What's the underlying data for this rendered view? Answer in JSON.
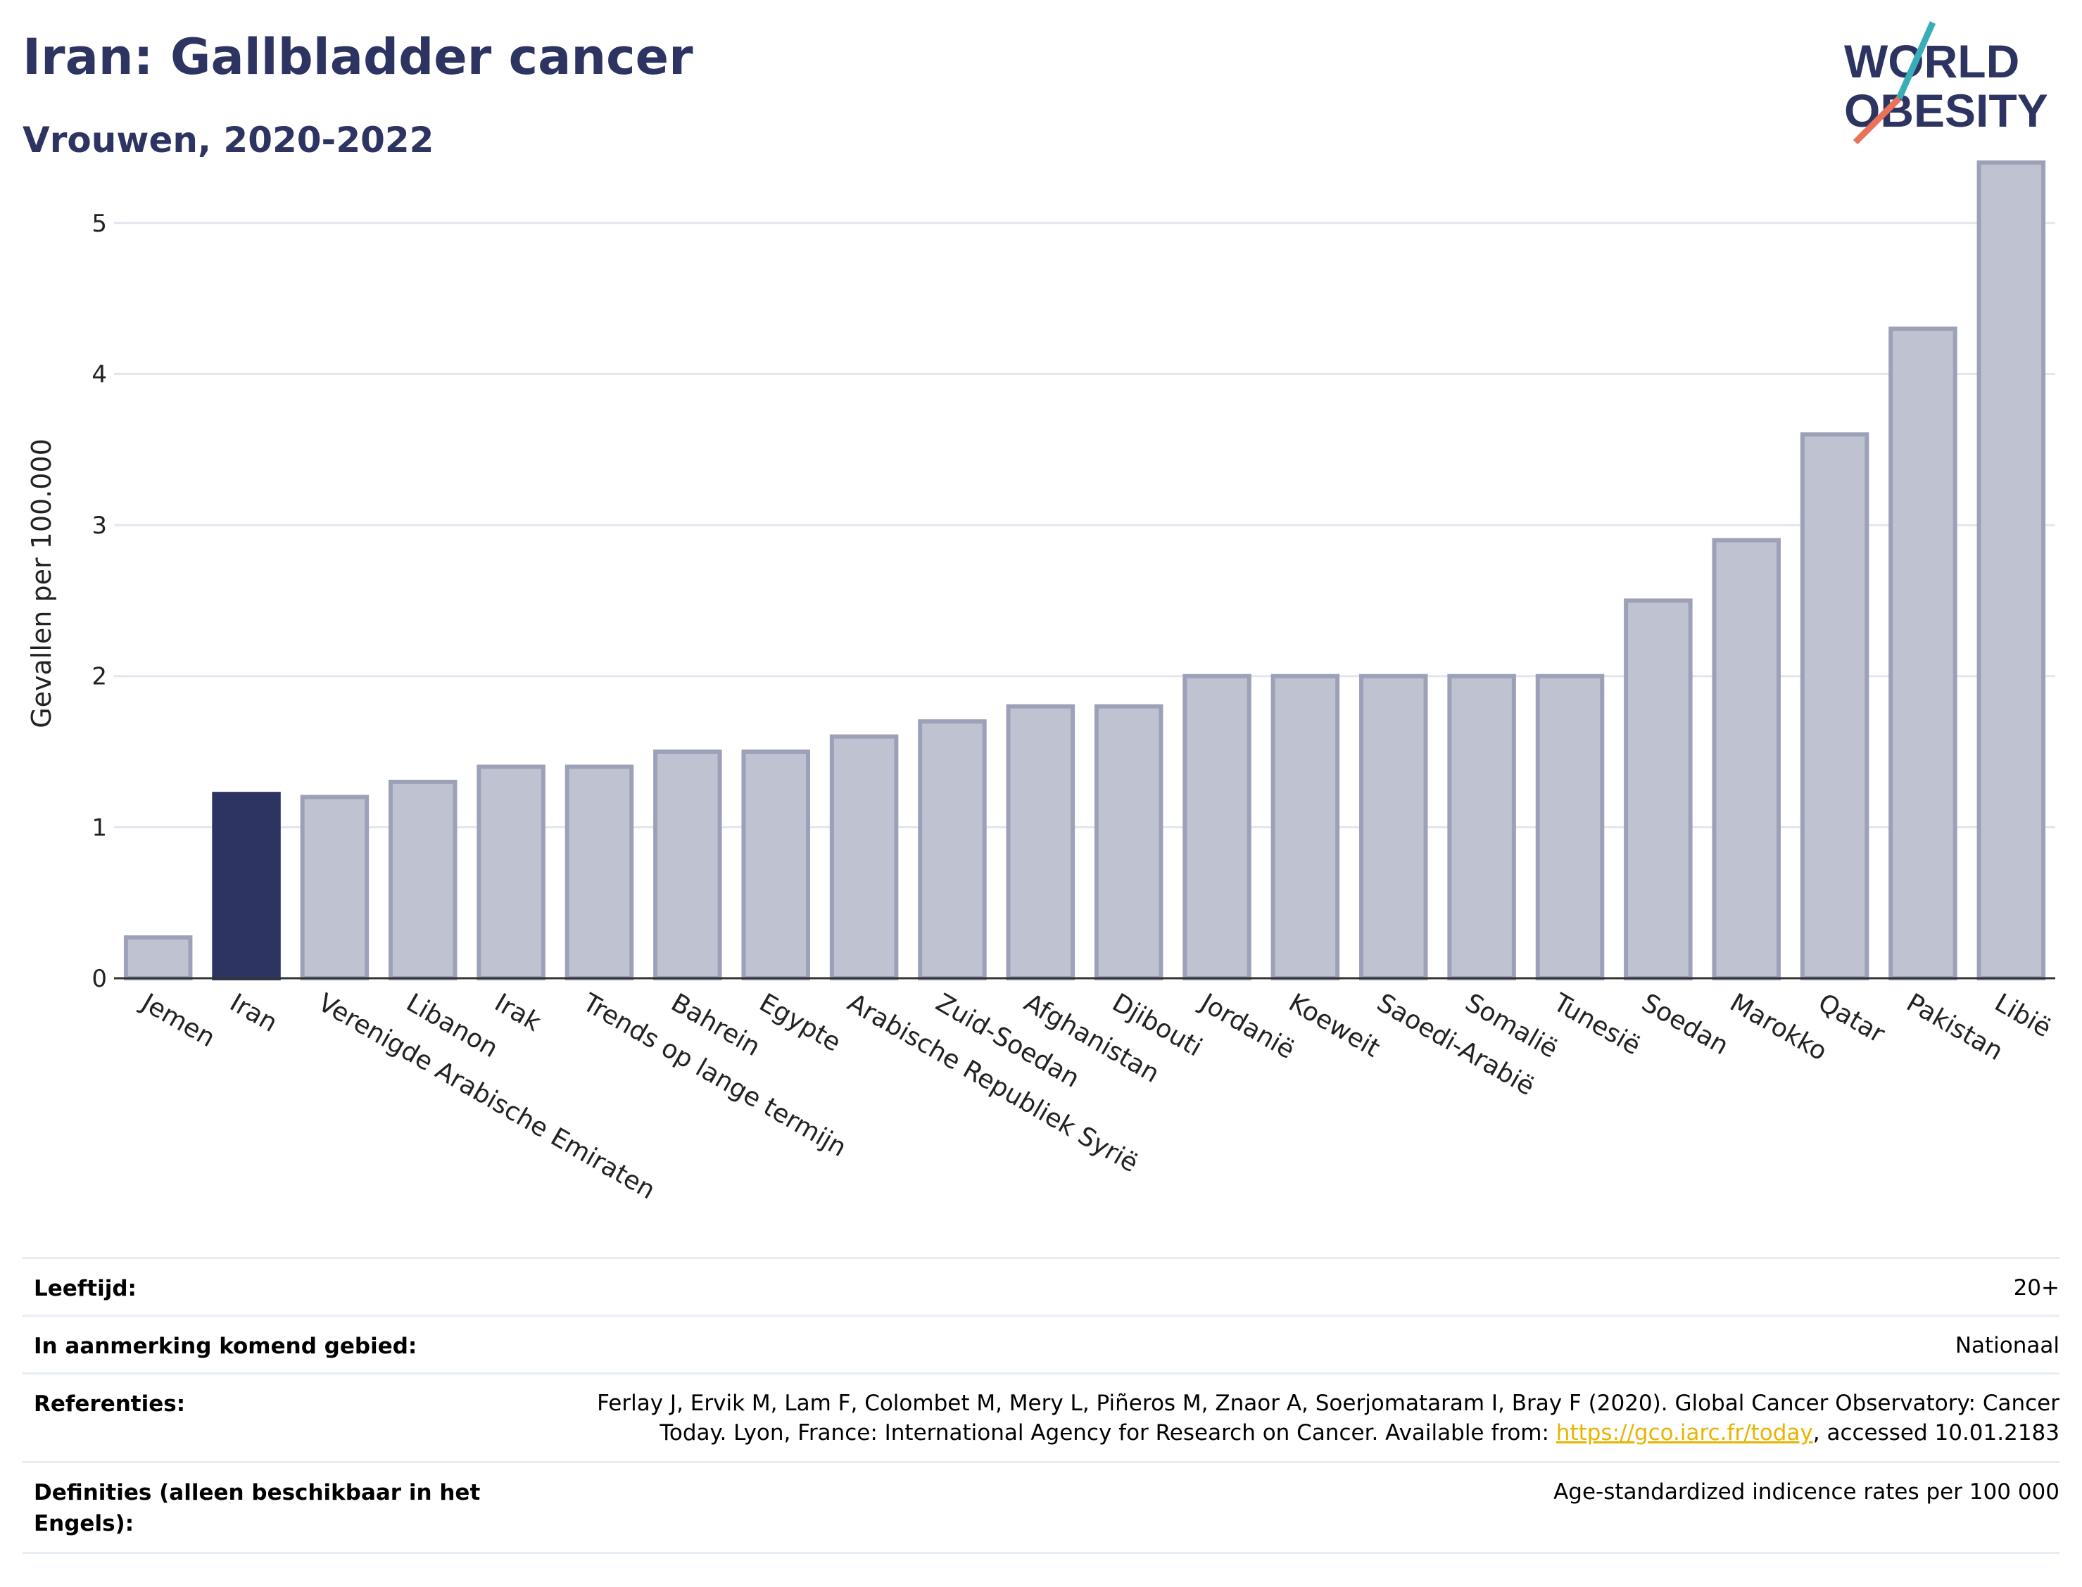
{
  "header": {
    "title": "Iran: Gallbladder cancer",
    "subtitle": "Vrouwen, 2020-2022"
  },
  "logo": {
    "line1": "WORLD",
    "line2": "OBESITY"
  },
  "colors": {
    "highlight": "#2d3461",
    "bar": "#bfc2d0",
    "bar_border": "#9da1b8",
    "accent_teal": "#3aaeb8",
    "accent_red": "#e8735a",
    "link": "#e8b400"
  },
  "chart_data": {
    "type": "bar",
    "title": "Iran: Gallbladder cancer",
    "subtitle": "Vrouwen, 2020-2022",
    "xlabel": "",
    "ylabel": "Gevallen per 100.000",
    "ylim": [
      0,
      5.6
    ],
    "yticks": [
      0,
      1,
      2,
      3,
      4,
      5
    ],
    "grid": true,
    "highlight": "Iran",
    "categories": [
      "Jemen",
      "Iran",
      "Verenigde Arabische Emiraten",
      "Libanon",
      "Irak",
      "Trends op lange termijn",
      "Bahrein",
      "Egypte",
      "Arabische Republiek Syrië",
      "Zuid-Soedan",
      "Afghanistan",
      "Djibouti",
      "Jordanië",
      "Koeweit",
      "Saoedi-Arabië",
      "Somalië",
      "Tunesië",
      "Soedan",
      "Marokko",
      "Qatar",
      "Pakistan",
      "Libië"
    ],
    "values": [
      0.27,
      1.22,
      1.2,
      1.3,
      1.4,
      1.4,
      1.5,
      1.5,
      1.6,
      1.7,
      1.8,
      1.8,
      2.0,
      2.0,
      2.0,
      2.0,
      2.0,
      2.5,
      2.9,
      3.6,
      4.3,
      5.4
    ]
  },
  "meta": {
    "rows": [
      {
        "label": "Leeftijd:",
        "value": "20+"
      },
      {
        "label": "In aanmerking komend gebied:",
        "value": "Nationaal"
      },
      {
        "label": "Referenties:",
        "value_line1": "Ferlay J, Ervik M, Lam F, Colombet M, Mery L, Piñeros M, Znaor A, Soerjomataram I, Bray F (2020). Global Cancer Observatory: Cancer",
        "value_line2_pre": "Today. Lyon, France: International Agency for Research on Cancer. Available from: ",
        "link": "https://gco.iarc.fr/today",
        "value_line2_post": ", accessed 10.01.2183"
      },
      {
        "label": "Definities (alleen beschikbaar in het Engels):",
        "value": "Age-standardized indicence rates per 100 000"
      }
    ]
  }
}
